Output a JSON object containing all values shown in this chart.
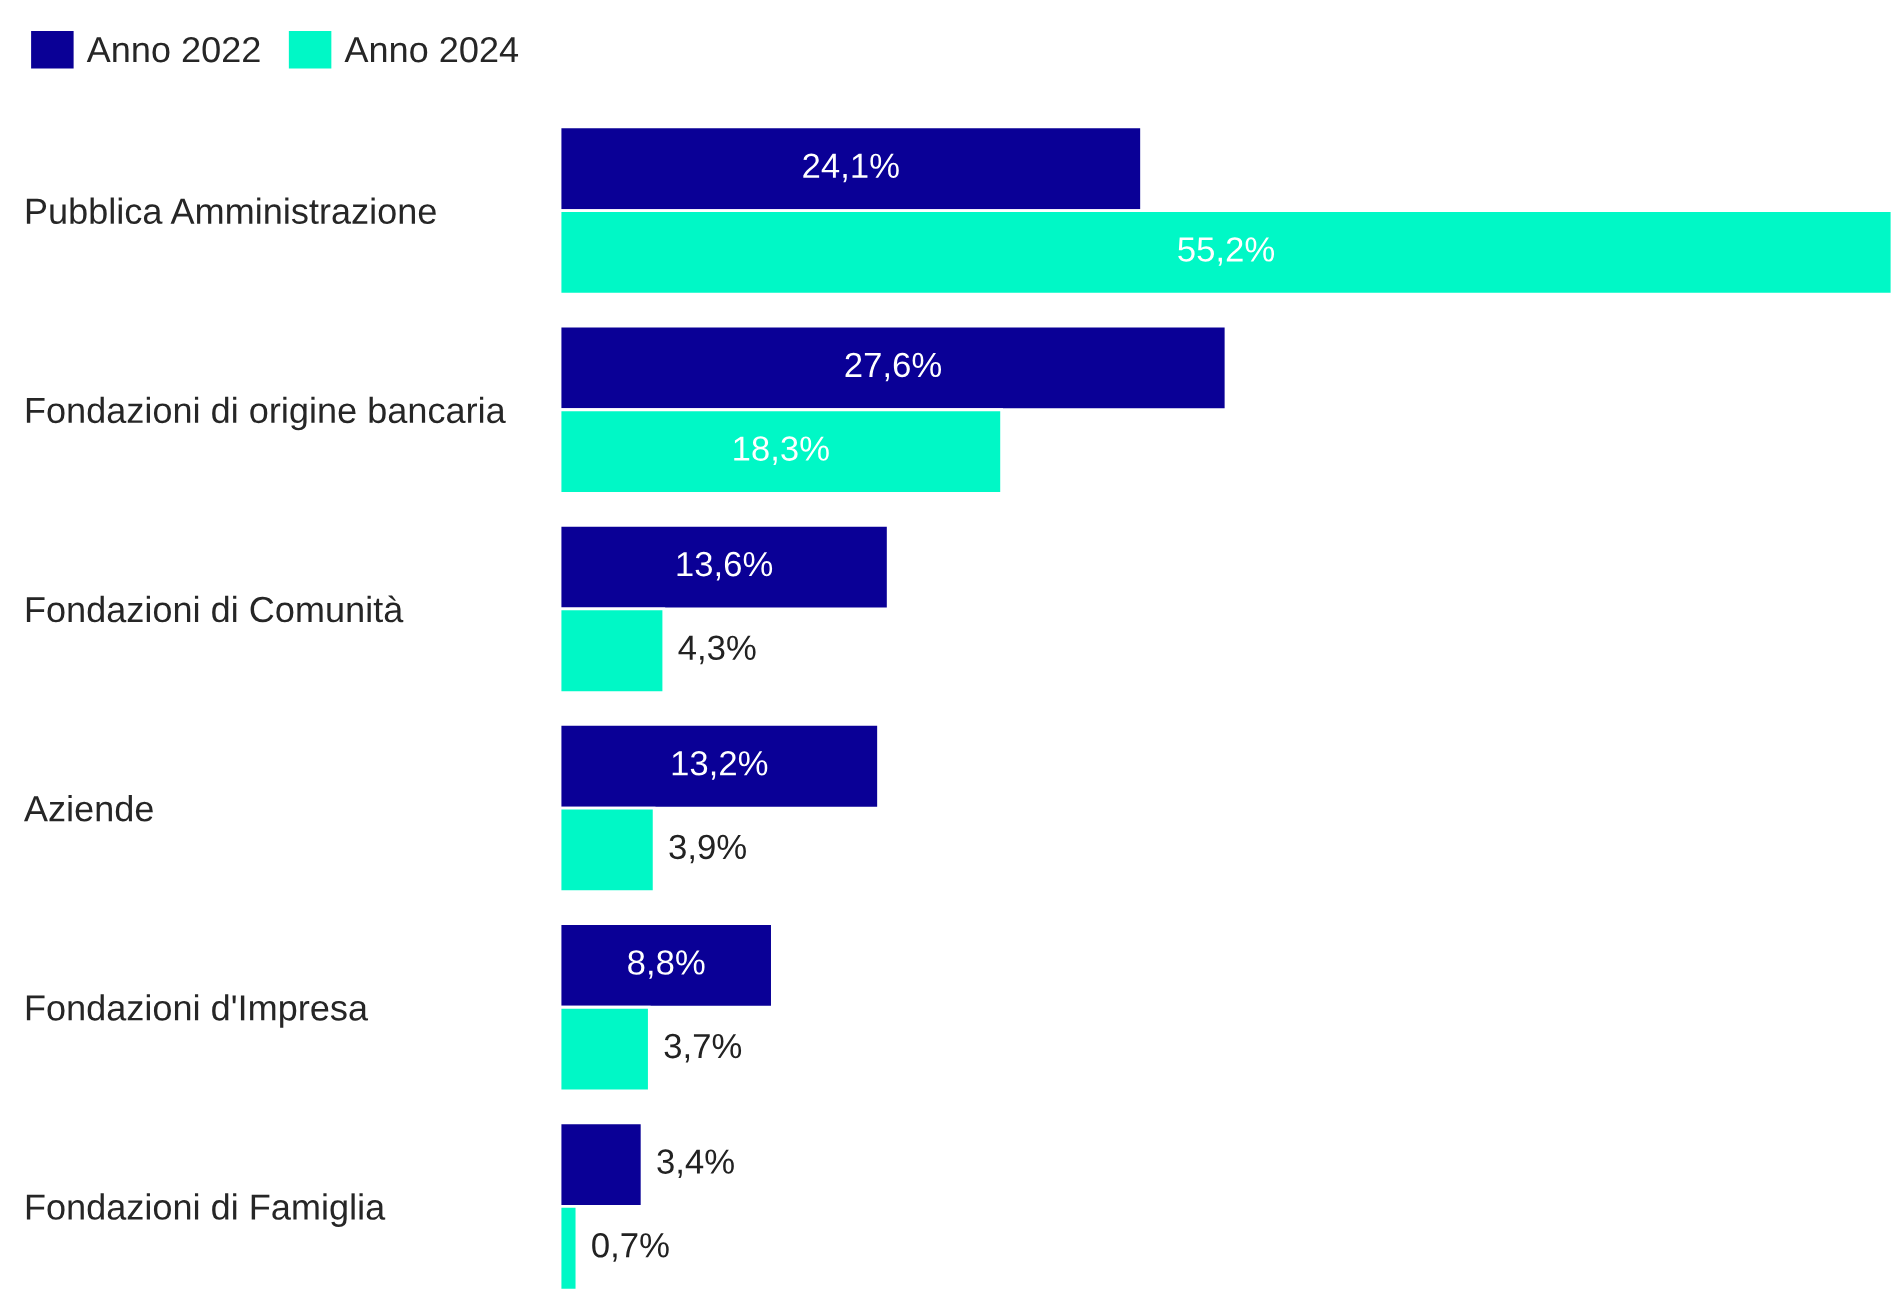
{
  "chart_data": {
    "type": "bar",
    "orientation": "horizontal",
    "categories": [
      "Pubblica Amministrazione",
      "Fondazioni di origine bancaria",
      "Fondazioni di Comunità",
      "Aziende",
      "Fondazioni d'Impresa",
      "Fondazioni di Famiglia"
    ],
    "series": [
      {
        "name": "Anno 2022",
        "color": "#0a0096",
        "values": [
          24.1,
          27.6,
          13.6,
          13.2,
          8.8,
          3.4
        ],
        "value_labels": [
          "24,1%",
          "27,6%",
          "13,6%",
          "13,2%",
          "8,8%",
          "3,4%"
        ]
      },
      {
        "name": "Anno 2024",
        "color": "#00f8c6",
        "values": [
          55.2,
          18.3,
          4.3,
          3.9,
          3.7,
          0.7
        ],
        "value_labels": [
          "55,2%",
          "18,3%",
          "4,3%",
          "3,9%",
          "3,7%",
          "0,7%"
        ]
      }
    ],
    "xlim": [
      0,
      55.2
    ],
    "tick_labels": "y",
    "legend": "top left"
  }
}
